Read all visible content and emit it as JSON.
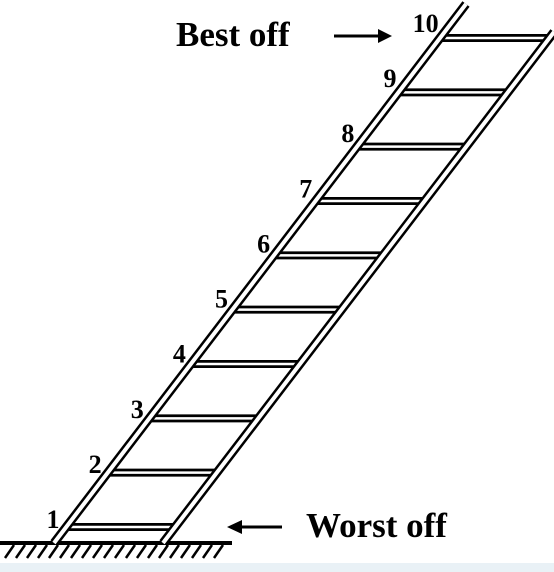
{
  "diagram": {
    "top_caption": "Best off",
    "bottom_caption": "Worst off",
    "steps": [
      "1",
      "2",
      "3",
      "4",
      "5",
      "6",
      "7",
      "8",
      "9",
      "10"
    ]
  }
}
